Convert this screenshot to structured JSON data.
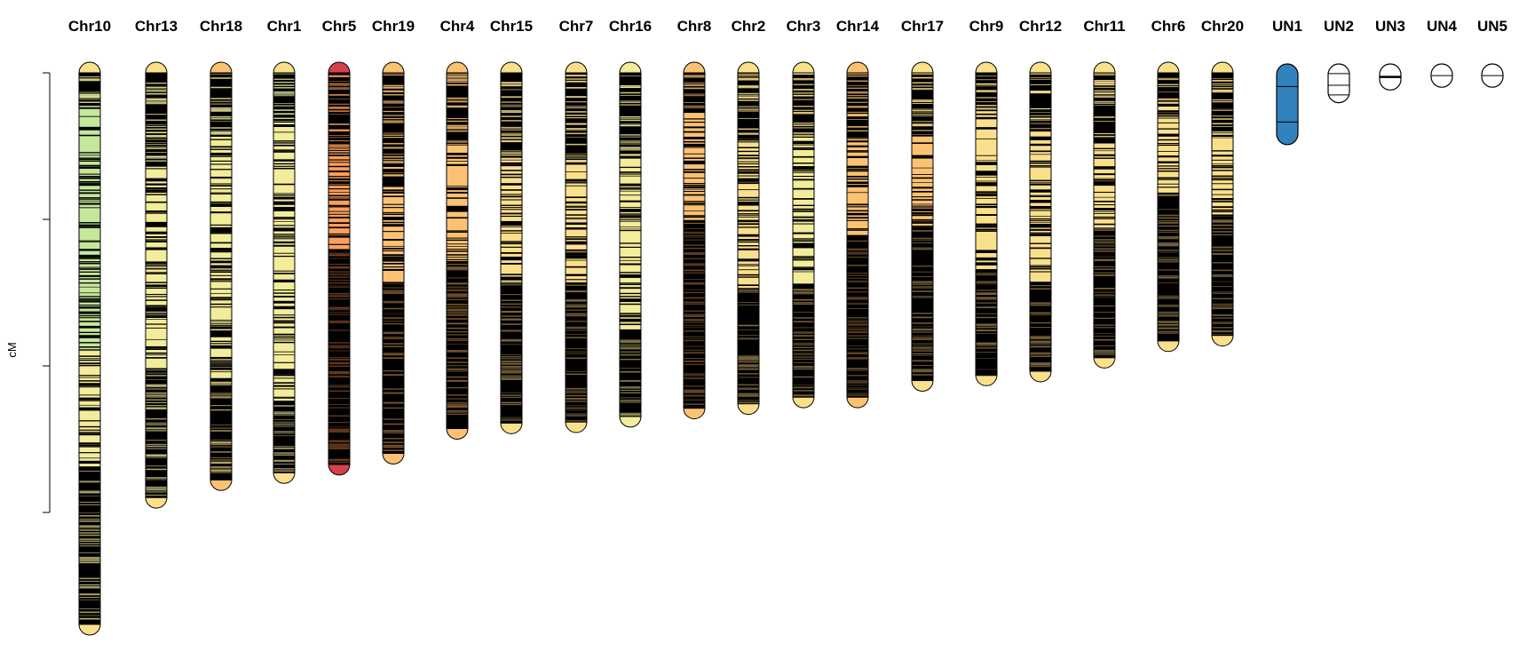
{
  "chart_data": {
    "type": "linkage-map",
    "ylabel": "cM",
    "y_ticks_shown_without_labels": 4,
    "chromosome_order": [
      "Chr10",
      "Chr13",
      "Chr18",
      "Chr1",
      "Chr5",
      "Chr19",
      "Chr4",
      "Chr15",
      "Chr7",
      "Chr16",
      "Chr8",
      "Chr2",
      "Chr3",
      "Chr14",
      "Chr17",
      "Chr9",
      "Chr12",
      "Chr11",
      "Chr6",
      "Chr20",
      "UN1",
      "UN2",
      "UN3",
      "UN4",
      "UN5"
    ],
    "density_palette": {
      "low": "#c5e79b",
      "mid_low": "#f3ec9a",
      "mid": "#fbe08c",
      "mid_high": "#fcc273",
      "high": "#fd9f5b",
      "highest": "#d7414e",
      "single": "#3182bd"
    },
    "chromosomes": [
      {
        "name": "Chr10",
        "relative_length": 1.0,
        "end_color": "#fbe08c",
        "zones": [
          {
            "from": 0.0,
            "to": 0.06,
            "color": "#000000",
            "band": "#e8f2a0"
          },
          {
            "from": 0.06,
            "to": 0.5,
            "color": "#c5e79b",
            "band": "#000000"
          },
          {
            "from": 0.5,
            "to": 0.72,
            "color": "#f3ec9a",
            "band": "#000000"
          },
          {
            "from": 0.72,
            "to": 1.0,
            "color": "#000000",
            "band": "#b8b070"
          }
        ]
      },
      {
        "name": "Chr13",
        "relative_length": 0.77,
        "end_color": "#fbe08c",
        "zones": [
          {
            "from": 0.0,
            "to": 0.22,
            "color": "#000000",
            "band": "#f3ec9a"
          },
          {
            "from": 0.22,
            "to": 0.7,
            "color": "#f3ec9a",
            "band": "#000000"
          },
          {
            "from": 0.7,
            "to": 1.0,
            "color": "#000000",
            "band": "#c8c080"
          }
        ]
      },
      {
        "name": "Chr18",
        "relative_length": 0.738,
        "end_color": "#fcc273",
        "zones": [
          {
            "from": 0.0,
            "to": 0.15,
            "color": "#000000",
            "band": "#f3ec9a"
          },
          {
            "from": 0.15,
            "to": 0.75,
            "color": "#f3ec9a",
            "band": "#000000"
          },
          {
            "from": 0.75,
            "to": 1.0,
            "color": "#000000",
            "band": "#c8b070"
          }
        ]
      },
      {
        "name": "Chr1",
        "relative_length": 0.725,
        "end_color": "#fbe08c",
        "zones": [
          {
            "from": 0.0,
            "to": 0.12,
            "color": "#000000",
            "band": "#e8f2a0"
          },
          {
            "from": 0.12,
            "to": 0.82,
            "color": "#f3ec9a",
            "band": "#000000"
          },
          {
            "from": 0.82,
            "to": 1.0,
            "color": "#000000",
            "band": "#a8a070"
          }
        ]
      },
      {
        "name": "Chr5",
        "relative_length": 0.71,
        "end_color": "#d7414e",
        "zones": [
          {
            "from": 0.0,
            "to": 0.2,
            "color": "#000000",
            "band": "#fd9f5b"
          },
          {
            "from": 0.2,
            "to": 0.45,
            "color": "#fd9f5b",
            "band": "#000000"
          },
          {
            "from": 0.45,
            "to": 1.0,
            "color": "#000000",
            "band": "#704020"
          }
        ]
      },
      {
        "name": "Chr19",
        "relative_length": 0.69,
        "end_color": "#fcc273",
        "zones": [
          {
            "from": 0.0,
            "to": 0.3,
            "color": "#000000",
            "band": "#fcc273"
          },
          {
            "from": 0.3,
            "to": 0.55,
            "color": "#fcc273",
            "band": "#000000"
          },
          {
            "from": 0.55,
            "to": 1.0,
            "color": "#000000",
            "band": "#805a30"
          }
        ]
      },
      {
        "name": "Chr4",
        "relative_length": 0.645,
        "end_color": "#fcc273",
        "zones": [
          {
            "from": 0.0,
            "to": 0.2,
            "color": "#000000",
            "band": "#fcc273"
          },
          {
            "from": 0.2,
            "to": 0.55,
            "color": "#fcc273",
            "band": "#000000"
          },
          {
            "from": 0.55,
            "to": 1.0,
            "color": "#000000",
            "band": "#805a30"
          }
        ]
      },
      {
        "name": "Chr15",
        "relative_length": 0.635,
        "end_color": "#fbe08c",
        "zones": [
          {
            "from": 0.0,
            "to": 0.25,
            "color": "#000000",
            "band": "#fbe08c"
          },
          {
            "from": 0.25,
            "to": 0.6,
            "color": "#fbe08c",
            "band": "#000000"
          },
          {
            "from": 0.6,
            "to": 1.0,
            "color": "#000000",
            "band": "#806a40"
          }
        ]
      },
      {
        "name": "Chr7",
        "relative_length": 0.633,
        "end_color": "#fbe08c",
        "zones": [
          {
            "from": 0.0,
            "to": 0.25,
            "color": "#000000",
            "band": "#fbe08c"
          },
          {
            "from": 0.25,
            "to": 0.6,
            "color": "#fbe08c",
            "band": "#000000"
          },
          {
            "from": 0.6,
            "to": 1.0,
            "color": "#000000",
            "band": "#806a40"
          }
        ]
      },
      {
        "name": "Chr16",
        "relative_length": 0.623,
        "end_color": "#f3ec9a",
        "zones": [
          {
            "from": 0.0,
            "to": 0.25,
            "color": "#000000",
            "band": "#f3ec9a"
          },
          {
            "from": 0.25,
            "to": 0.75,
            "color": "#f3ec9a",
            "band": "#000000"
          },
          {
            "from": 0.75,
            "to": 1.0,
            "color": "#000000",
            "band": "#908a50"
          }
        ]
      },
      {
        "name": "Chr8",
        "relative_length": 0.608,
        "end_color": "#fcc273",
        "zones": [
          {
            "from": 0.0,
            "to": 0.12,
            "color": "#000000",
            "band": "#fcc273"
          },
          {
            "from": 0.12,
            "to": 0.45,
            "color": "#fcc273",
            "band": "#000000"
          },
          {
            "from": 0.45,
            "to": 1.0,
            "color": "#000000",
            "band": "#6a4a28"
          }
        ]
      },
      {
        "name": "Chr2",
        "relative_length": 0.6,
        "end_color": "#fbe08c",
        "zones": [
          {
            "from": 0.0,
            "to": 0.2,
            "color": "#000000",
            "band": "#fbe08c"
          },
          {
            "from": 0.2,
            "to": 0.65,
            "color": "#fbe08c",
            "band": "#000000"
          },
          {
            "from": 0.65,
            "to": 1.0,
            "color": "#000000",
            "band": "#806a40"
          }
        ]
      },
      {
        "name": "Chr3",
        "relative_length": 0.588,
        "end_color": "#fbe08c",
        "zones": [
          {
            "from": 0.0,
            "to": 0.2,
            "color": "#000000",
            "band": "#fbe08c"
          },
          {
            "from": 0.2,
            "to": 0.65,
            "color": "#f3ec9a",
            "band": "#000000"
          },
          {
            "from": 0.65,
            "to": 1.0,
            "color": "#000000",
            "band": "#806a40"
          }
        ]
      },
      {
        "name": "Chr14",
        "relative_length": 0.588,
        "end_color": "#fcc273",
        "zones": [
          {
            "from": 0.0,
            "to": 0.2,
            "color": "#000000",
            "band": "#fcc273"
          },
          {
            "from": 0.2,
            "to": 0.5,
            "color": "#fcc273",
            "band": "#000000"
          },
          {
            "from": 0.5,
            "to": 1.0,
            "color": "#000000",
            "band": "#6a4a28"
          }
        ]
      },
      {
        "name": "Chr17",
        "relative_length": 0.558,
        "end_color": "#fbe08c",
        "zones": [
          {
            "from": 0.0,
            "to": 0.2,
            "color": "#000000",
            "band": "#fbe08c"
          },
          {
            "from": 0.2,
            "to": 0.5,
            "color": "#fcc273",
            "band": "#000000"
          },
          {
            "from": 0.5,
            "to": 1.0,
            "color": "#000000",
            "band": "#806a40"
          }
        ]
      },
      {
        "name": "Chr9",
        "relative_length": 0.548,
        "end_color": "#fbe08c",
        "zones": [
          {
            "from": 0.0,
            "to": 0.12,
            "color": "#000000",
            "band": "#fbe08c"
          },
          {
            "from": 0.12,
            "to": 0.65,
            "color": "#fbe08c",
            "band": "#000000"
          },
          {
            "from": 0.65,
            "to": 1.0,
            "color": "#000000",
            "band": "#806a40"
          }
        ]
      },
      {
        "name": "Chr12",
        "relative_length": 0.541,
        "end_color": "#fbe08c",
        "zones": [
          {
            "from": 0.0,
            "to": 0.2,
            "color": "#000000",
            "band": "#fbe08c"
          },
          {
            "from": 0.2,
            "to": 0.7,
            "color": "#fbe08c",
            "band": "#000000"
          },
          {
            "from": 0.7,
            "to": 1.0,
            "color": "#000000",
            "band": "#806a40"
          }
        ]
      },
      {
        "name": "Chr11",
        "relative_length": 0.516,
        "end_color": "#fbe08c",
        "zones": [
          {
            "from": 0.0,
            "to": 0.25,
            "color": "#000000",
            "band": "#fbe08c"
          },
          {
            "from": 0.25,
            "to": 0.55,
            "color": "#fbe08c",
            "band": "#000000"
          },
          {
            "from": 0.55,
            "to": 1.0,
            "color": "#000000",
            "band": "#806a40"
          }
        ]
      },
      {
        "name": "Chr6",
        "relative_length": 0.486,
        "end_color": "#fbe08c",
        "zones": [
          {
            "from": 0.0,
            "to": 0.1,
            "color": "#000000",
            "band": "#fbe08c"
          },
          {
            "from": 0.1,
            "to": 0.45,
            "color": "#fbe08c",
            "band": "#000000"
          },
          {
            "from": 0.45,
            "to": 1.0,
            "color": "#000000",
            "band": "#806a40"
          }
        ]
      },
      {
        "name": "Chr20",
        "relative_length": 0.476,
        "end_color": "#fbe08c",
        "zones": [
          {
            "from": 0.0,
            "to": 0.25,
            "color": "#000000",
            "band": "#fbe08c"
          },
          {
            "from": 0.25,
            "to": 0.55,
            "color": "#fbe08c",
            "band": "#000000"
          },
          {
            "from": 0.55,
            "to": 1.0,
            "color": "#000000",
            "band": "#806a40"
          }
        ]
      },
      {
        "name": "UN1",
        "relative_length": 0.114,
        "fill": "#3182bd",
        "lines": [
          0.28,
          0.72
        ]
      },
      {
        "name": "UN2",
        "relative_length": 0.038,
        "fill": "#ffffff",
        "lines": [
          0.25,
          0.55,
          0.8
        ]
      },
      {
        "name": "UN3",
        "relative_length": 0.015,
        "fill": "#ffffff",
        "lines": [
          0.5
        ],
        "thick": true
      },
      {
        "name": "UN4",
        "relative_length": 0.01,
        "fill": "#ffffff",
        "lines": [
          0.5
        ]
      },
      {
        "name": "UN5",
        "relative_length": 0.01,
        "fill": "#ffffff",
        "lines": [
          0.5
        ]
      }
    ]
  }
}
